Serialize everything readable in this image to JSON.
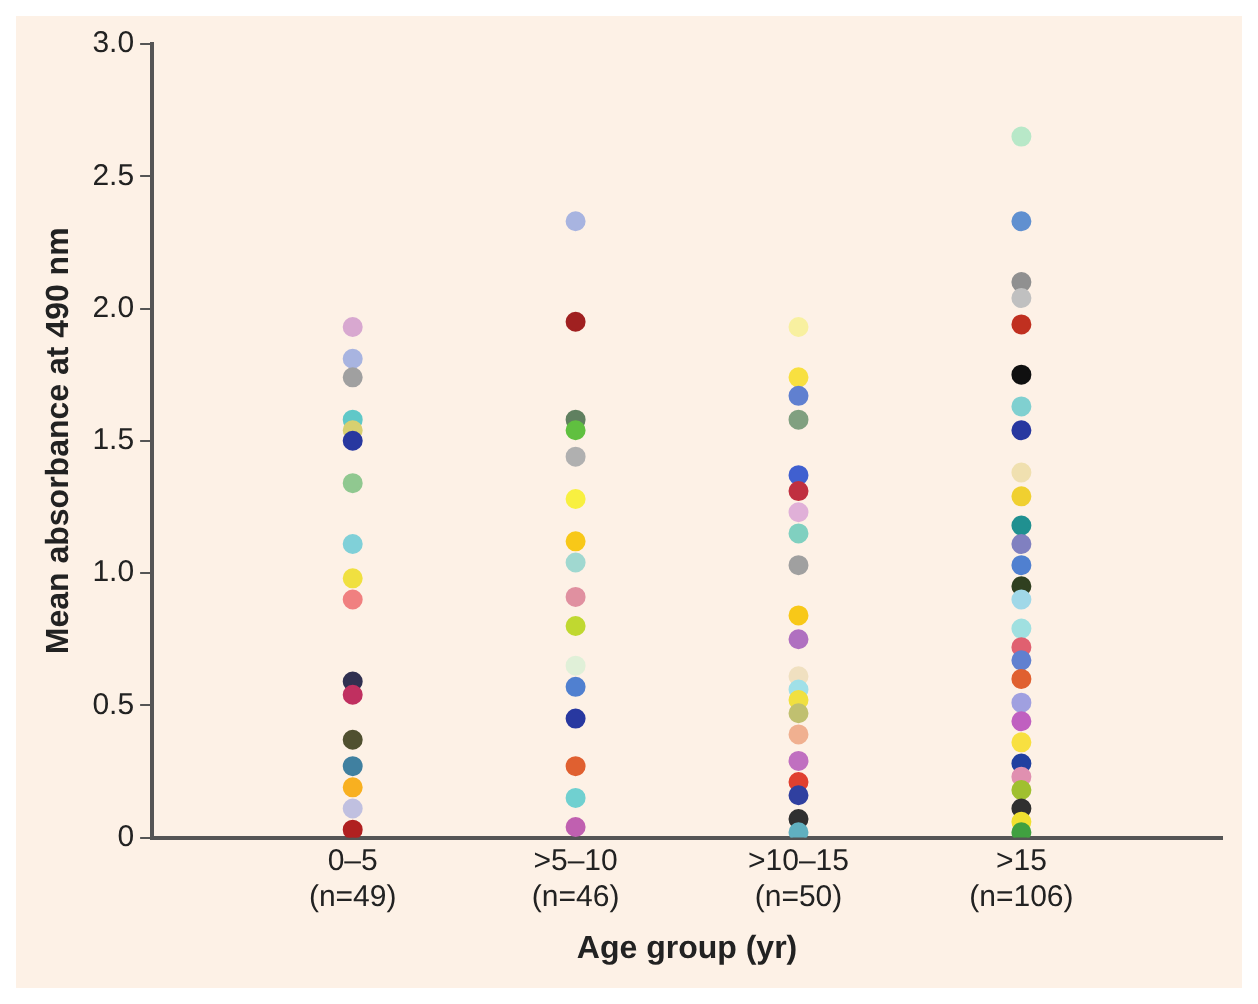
{
  "chart_data": {
    "type": "scatter",
    "xlabel": "Age group (yr)",
    "ylabel": "Mean absorbance at 490 nm",
    "categories": [
      "0–5\n(n=49)",
      ">5–10\n(n=46)",
      ">10–15\n(n=50)",
      ">15\n(n=106)"
    ],
    "ylim": [
      0,
      3
    ],
    "yticks": [
      0,
      0.5,
      {
        "value": 1,
        "label": "1.0"
      },
      1.5,
      {
        "value": 2,
        "label": "2.0"
      },
      2.5,
      {
        "value": 3,
        "label": "3.0"
      }
    ],
    "grid": false,
    "legend": false,
    "marker": "circle",
    "series": [
      {
        "x": [
          "0–5\n(n=49)",
          "0–5\n(n=49)",
          "0–5\n(n=49)",
          "0–5\n(n=49)",
          "0–5\n(n=49)",
          "0–5\n(n=49)",
          "0–5\n(n=49)",
          "0–5\n(n=49)",
          "0–5\n(n=49)",
          "0–5\n(n=49)",
          "0–5\n(n=49)",
          "0–5\n(n=49)",
          "0–5\n(n=49)",
          "0–5\n(n=49)",
          "0–5\n(n=49)",
          "0–5\n(n=49)",
          "0–5\n(n=49)"
        ],
        "values": [
          1.93,
          1.81,
          1.74,
          1.58,
          1.54,
          1.5,
          1.34,
          1.11,
          0.98,
          0.9,
          0.59,
          0.54,
          0.37,
          0.27,
          0.19,
          0.11,
          0.03
        ],
        "colors": [
          "#d8a8d0",
          "#a8b4e0",
          "#a0a0a0",
          "#60c8c8",
          "#d8d070",
          "#2838a0",
          "#90c890",
          "#80d0d8",
          "#f0e040",
          "#f08080",
          "#303050",
          "#c03060",
          "#505030",
          "#4080a0",
          "#f8b020",
          "#c0c0e0",
          "#b02020"
        ]
      },
      {
        "x": [
          ">5–10\n(n=46)",
          ">5–10\n(n=46)",
          ">5–10\n(n=46)",
          ">5–10\n(n=46)",
          ">5–10\n(n=46)",
          ">5–10\n(n=46)",
          ">5–10\n(n=46)",
          ">5–10\n(n=46)",
          ">5–10\n(n=46)",
          ">5–10\n(n=46)",
          ">5–10\n(n=46)",
          ">5–10\n(n=46)",
          ">5–10\n(n=46)",
          ">5–10\n(n=46)",
          ">5–10\n(n=46)",
          ">5–10\n(n=46)"
        ],
        "values": [
          2.33,
          1.95,
          1.58,
          1.54,
          1.44,
          1.28,
          1.12,
          1.04,
          0.91,
          0.8,
          0.65,
          0.57,
          0.45,
          0.27,
          0.15,
          0.04
        ],
        "colors": [
          "#a8b4e0",
          "#a02020",
          "#608060",
          "#60c040",
          "#b0b0b0",
          "#f8f040",
          "#f8c818",
          "#a0d8d0",
          "#e090a0",
          "#c0d830",
          "#e0f0d8",
          "#5080d0",
          "#2838a0",
          "#e06030",
          "#70d0d0",
          "#c060b0"
        ]
      },
      {
        "x": [
          ">10–15\n(n=50)",
          ">10–15\n(n=50)",
          ">10–15\n(n=50)",
          ">10–15\n(n=50)",
          ">10–15\n(n=50)",
          ">10–15\n(n=50)",
          ">10–15\n(n=50)",
          ">10–15\n(n=50)",
          ">10–15\n(n=50)",
          ">10–15\n(n=50)",
          ">10–15\n(n=50)",
          ">10–15\n(n=50)",
          ">10–15\n(n=50)",
          ">10–15\n(n=50)",
          ">10–15\n(n=50)",
          ">10–15\n(n=50)",
          ">10–15\n(n=50)",
          ">10–15\n(n=50)",
          ">10–15\n(n=50)",
          ">10–15\n(n=50)",
          ">10–15\n(n=50)"
        ],
        "values": [
          1.93,
          1.74,
          1.67,
          1.58,
          1.37,
          1.31,
          1.23,
          1.15,
          1.03,
          0.84,
          0.75,
          0.61,
          0.56,
          0.52,
          0.47,
          0.39,
          0.29,
          0.21,
          0.16,
          0.07,
          0.02
        ],
        "colors": [
          "#f8f0a0",
          "#f8e040",
          "#6080d0",
          "#80a080",
          "#4060d0",
          "#c03040",
          "#e0b0d8",
          "#80d0c0",
          "#a0a0a0",
          "#f8c818",
          "#b070c0",
          "#f0e0c0",
          "#a0e0e8",
          "#f0e040",
          "#c0c070",
          "#f0b090",
          "#c070c0",
          "#e04030",
          "#3040a0",
          "#303030",
          "#60b0c0"
        ]
      },
      {
        "x": [
          ">15\n(n=106)",
          ">15\n(n=106)",
          ">15\n(n=106)",
          ">15\n(n=106)",
          ">15\n(n=106)",
          ">15\n(n=106)",
          ">15\n(n=106)",
          ">15\n(n=106)",
          ">15\n(n=106)",
          ">15\n(n=106)",
          ">15\n(n=106)",
          ">15\n(n=106)",
          ">15\n(n=106)",
          ">15\n(n=106)",
          ">15\n(n=106)",
          ">15\n(n=106)",
          ">15\n(n=106)",
          ">15\n(n=106)",
          ">15\n(n=106)",
          ">15\n(n=106)",
          ">15\n(n=106)",
          ">15\n(n=106)",
          ">15\n(n=106)",
          ">15\n(n=106)",
          ">15\n(n=106)",
          ">15\n(n=106)",
          ">15\n(n=106)",
          ">15\n(n=106)"
        ],
        "values": [
          2.65,
          2.33,
          2.1,
          2.04,
          1.94,
          1.75,
          1.63,
          1.54,
          1.38,
          1.29,
          1.18,
          1.11,
          1.03,
          0.95,
          0.9,
          0.79,
          0.72,
          0.67,
          0.6,
          0.51,
          0.44,
          0.36,
          0.28,
          0.23,
          0.18,
          0.11,
          0.06,
          0.02
        ],
        "colors": [
          "#b8e8c8",
          "#6090d0",
          "#909090",
          "#c0c0c0",
          "#c03020",
          "#101010",
          "#80d0d0",
          "#2838a0",
          "#f0e0b0",
          "#f0d030",
          "#209090",
          "#8080c0",
          "#5080d0",
          "#304020",
          "#a0d8e8",
          "#a0e0e0",
          "#e06070",
          "#6080d0",
          "#e06030",
          "#a0a0e0",
          "#c060c0",
          "#f8e040",
          "#2040a0",
          "#e090b0",
          "#a0c030",
          "#303030",
          "#f0e030",
          "#40a040"
        ]
      }
    ]
  }
}
